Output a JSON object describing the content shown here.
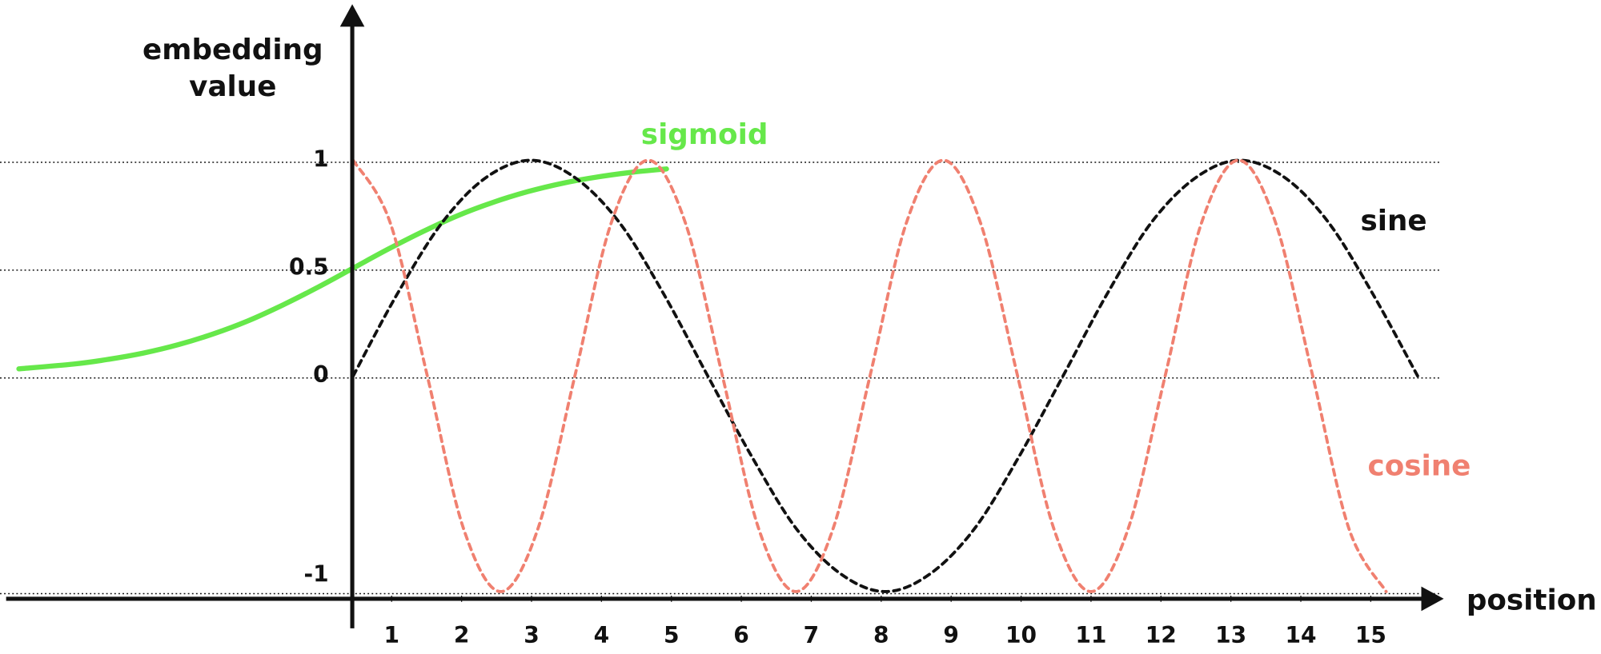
{
  "chart_data": {
    "type": "line",
    "ylabel": [
      "embedding",
      "value"
    ],
    "xlabel": "position",
    "xlim": [
      -4.6,
      16
    ],
    "ylim": [
      -1.03,
      1.7
    ],
    "xticks": [
      1,
      2,
      3,
      4,
      5,
      6,
      7,
      8,
      9,
      10,
      11,
      12,
      13,
      14,
      15
    ],
    "yticks": [
      -1,
      0,
      0.5,
      1
    ],
    "grid": true,
    "series": [
      {
        "name": "sigmoid",
        "color": "#66e84a",
        "dashed": false,
        "x": [
          -4.33,
          -3.55,
          -3.05,
          -2.55,
          -2.05,
          -1.55,
          -1.05,
          -0.55,
          -0.05,
          0.45,
          0.95,
          1.45,
          1.95,
          2.45,
          2.95,
          3.45,
          3.95,
          4.45,
          4.93
        ],
        "values": [
          0.033,
          0.055,
          0.077,
          0.106,
          0.145,
          0.195,
          0.256,
          0.33,
          0.412,
          0.5,
          0.588,
          0.67,
          0.744,
          0.805,
          0.855,
          0.894,
          0.923,
          0.945,
          0.96
        ]
      },
      {
        "name": "sine",
        "color": "#111111",
        "dashed": true,
        "x": [
          0.45,
          1.08,
          1.72,
          2.35,
          2.99,
          3.62,
          4.26,
          4.89,
          5.52,
          6.16,
          6.79,
          7.43,
          8.06,
          8.69,
          9.33,
          9.96,
          10.6,
          11.23,
          11.86,
          12.5,
          13.13,
          13.77,
          14.4,
          15.03,
          15.67
        ],
        "values": [
          0,
          0.38,
          0.71,
          0.92,
          1,
          0.92,
          0.71,
          0.38,
          0,
          -0.38,
          -0.71,
          -0.92,
          -1,
          -0.92,
          -0.71,
          -0.38,
          0,
          0.38,
          0.71,
          0.92,
          1,
          0.92,
          0.71,
          0.38,
          0
        ]
      },
      {
        "name": "cosine",
        "color": "#f08070",
        "dashed": true,
        "x": [
          0.45,
          0.98,
          1.51,
          2.03,
          2.56,
          3.09,
          3.62,
          4.14,
          4.67,
          5.2,
          5.73,
          6.25,
          6.78,
          7.31,
          7.84,
          8.36,
          8.89,
          9.42,
          9.95,
          10.47,
          11.0,
          11.53,
          12.06,
          12.58,
          13.11,
          13.64,
          14.17,
          14.69,
          15.22
        ],
        "values": [
          1,
          0.71,
          0,
          -0.71,
          -1,
          -0.71,
          0,
          0.71,
          1,
          0.71,
          0,
          -0.71,
          -1,
          -0.71,
          0,
          0.71,
          1,
          0.71,
          0,
          -0.71,
          -1,
          -0.71,
          0,
          0.71,
          1,
          0.71,
          0,
          -0.71,
          -1
        ]
      }
    ]
  }
}
